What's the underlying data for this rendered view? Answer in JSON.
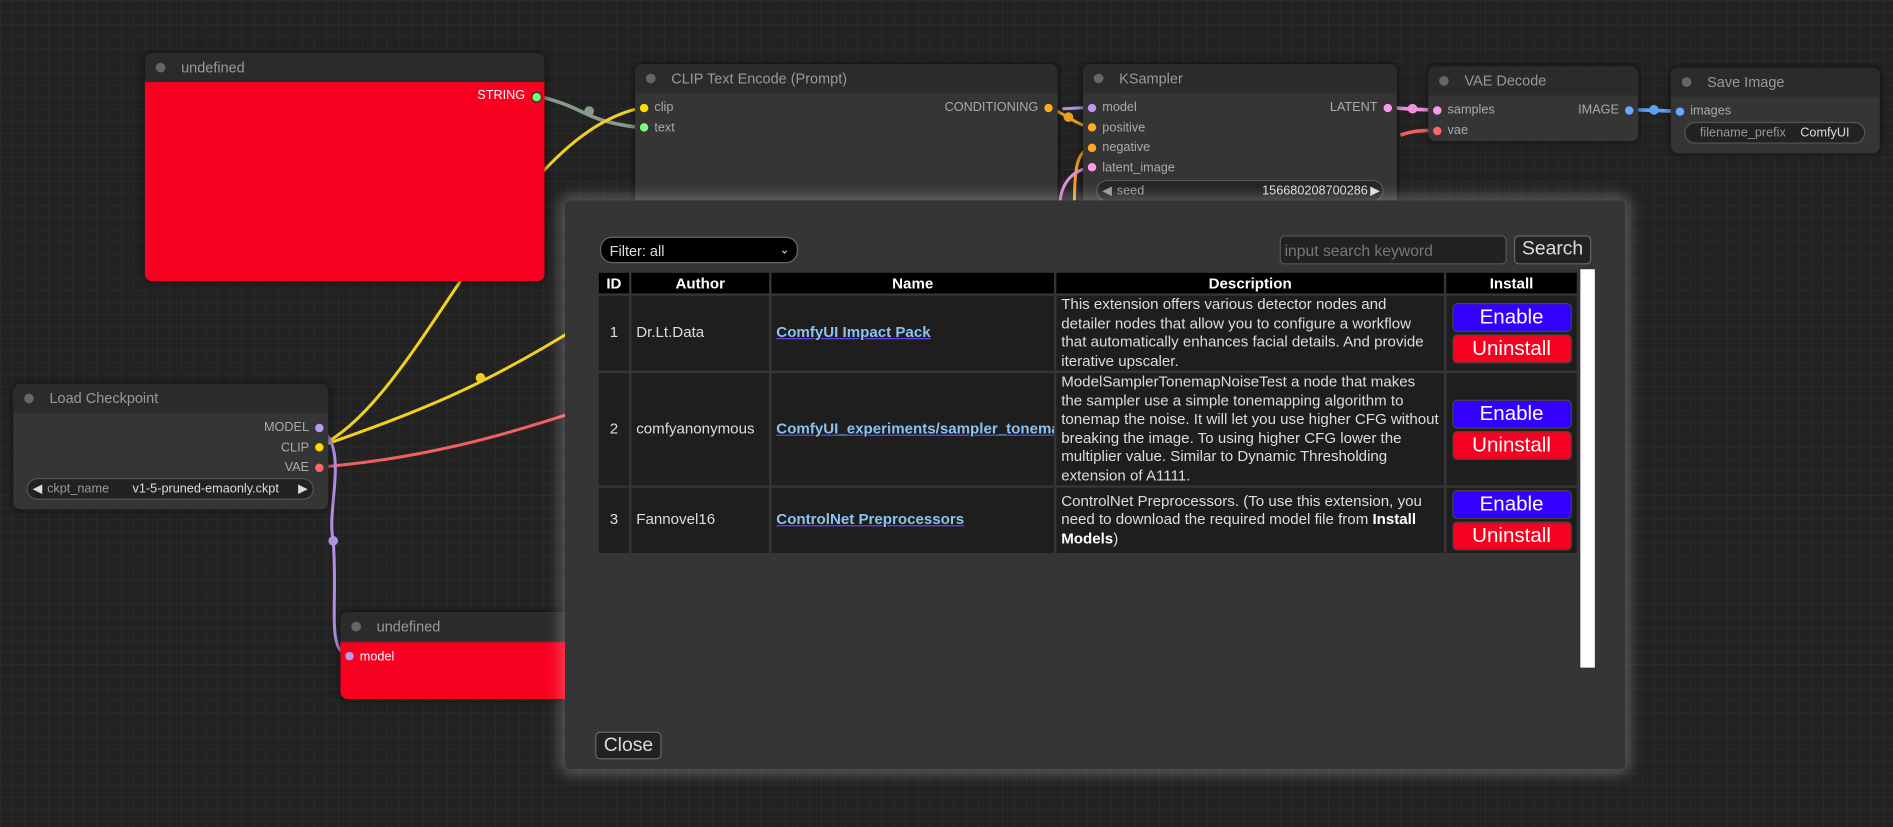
{
  "nodes": {
    "undefined_top": {
      "title": "undefined",
      "output": "STRING"
    },
    "clip_encode": {
      "title": "CLIP Text Encode (Prompt)",
      "inputs": [
        "clip",
        "text"
      ],
      "output": "CONDITIONING"
    },
    "ksampler": {
      "title": "KSampler",
      "inputs": [
        "model",
        "positive",
        "negative",
        "latent_image"
      ],
      "output": "LATENT",
      "seed_label": "seed",
      "seed_value": "156680208700286"
    },
    "vae_decode": {
      "title": "VAE Decode",
      "inputs": [
        "samples",
        "vae"
      ],
      "output": "IMAGE"
    },
    "save_image": {
      "title": "Save Image",
      "input": "images",
      "prefix_label": "filename_prefix",
      "prefix_value": "ComfyUI"
    },
    "load_checkpoint": {
      "title": "Load Checkpoint",
      "outputs": [
        "MODEL",
        "CLIP",
        "VAE"
      ],
      "ckpt_label": "ckpt_name",
      "ckpt_value": "v1-5-pruned-emaonly.ckpt"
    },
    "undefined_bottom": {
      "title": "undefined",
      "input": "model"
    }
  },
  "modal": {
    "filter": "Filter: all",
    "search_placeholder": "input search keyword",
    "search_label": "Search",
    "close_label": "Close",
    "columns": [
      "ID",
      "Author",
      "Name",
      "Description",
      "Install"
    ],
    "rows": [
      {
        "id": "1",
        "author": "Dr.Lt.Data",
        "name": "ComfyUI Impact Pack",
        "desc": "This extension offers various detector nodes and detailer nodes that allow you to configure a workflow that automatically enhances facial details. And provide iterative upscaler.",
        "enable": "Enable",
        "uninstall": "Uninstall"
      },
      {
        "id": "2",
        "author": "comfyanonymous",
        "name": "ComfyUI_experiments/sampler_tonemap",
        "desc": "ModelSamplerTonemapNoiseTest a node that makes the sampler use a simple tonemapping algorithm to tonemap the noise. It will let you use higher CFG without breaking the image. To using higher CFG lower the multiplier value. Similar to Dynamic Thresholding extension of A1111.",
        "enable": "Enable",
        "uninstall": "Uninstall"
      },
      {
        "id": "3",
        "author": "Fannovel16",
        "name": "ControlNet Preprocessors",
        "desc_pre": "ControlNet Preprocessors. (To use this extension, you need to download the required model file from ",
        "desc_bold": "Install Models",
        "desc_post": ")",
        "enable": "Enable",
        "uninstall": "Uninstall"
      }
    ]
  },
  "colors": {
    "enable": "#3300ff",
    "uninstall": "#f80020",
    "node_red": "#f80020"
  }
}
